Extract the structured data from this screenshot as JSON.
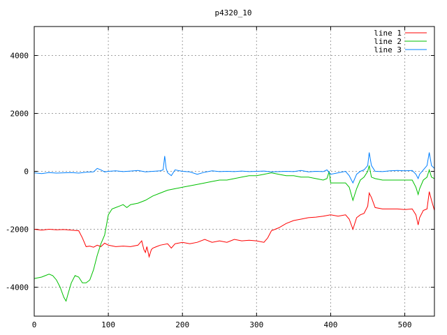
{
  "chart_data": {
    "type": "line",
    "title": "p4320_10",
    "xlabel": "",
    "ylabel": "",
    "xlim": [
      0,
      540
    ],
    "ylim": [
      -5000,
      5000
    ],
    "x_ticks": [
      0,
      100,
      200,
      300,
      400,
      500
    ],
    "y_ticks": [
      -4000,
      -2000,
      0,
      2000,
      4000
    ],
    "grid": true,
    "legend_position": "top-right",
    "series": [
      {
        "name": "line 1",
        "color": "#ff0000",
        "points": [
          [
            0,
            -2000
          ],
          [
            10,
            -2030
          ],
          [
            20,
            -2000
          ],
          [
            30,
            -2020
          ],
          [
            40,
            -2010
          ],
          [
            50,
            -2030
          ],
          [
            60,
            -2050
          ],
          [
            65,
            -2300
          ],
          [
            70,
            -2600
          ],
          [
            75,
            -2580
          ],
          [
            80,
            -2620
          ],
          [
            85,
            -2550
          ],
          [
            90,
            -2600
          ],
          [
            95,
            -2480
          ],
          [
            100,
            -2550
          ],
          [
            110,
            -2600
          ],
          [
            120,
            -2580
          ],
          [
            130,
            -2600
          ],
          [
            140,
            -2550
          ],
          [
            145,
            -2400
          ],
          [
            148,
            -2700
          ],
          [
            150,
            -2800
          ],
          [
            152,
            -2600
          ],
          [
            155,
            -2950
          ],
          [
            158,
            -2700
          ],
          [
            160,
            -2650
          ],
          [
            165,
            -2600
          ],
          [
            170,
            -2550
          ],
          [
            180,
            -2500
          ],
          [
            185,
            -2650
          ],
          [
            190,
            -2500
          ],
          [
            200,
            -2450
          ],
          [
            210,
            -2500
          ],
          [
            220,
            -2450
          ],
          [
            230,
            -2350
          ],
          [
            240,
            -2450
          ],
          [
            250,
            -2400
          ],
          [
            260,
            -2450
          ],
          [
            270,
            -2350
          ],
          [
            280,
            -2400
          ],
          [
            290,
            -2380
          ],
          [
            300,
            -2400
          ],
          [
            310,
            -2450
          ],
          [
            315,
            -2300
          ],
          [
            320,
            -2050
          ],
          [
            330,
            -1950
          ],
          [
            340,
            -1800
          ],
          [
            350,
            -1700
          ],
          [
            360,
            -1650
          ],
          [
            370,
            -1600
          ],
          [
            380,
            -1580
          ],
          [
            390,
            -1550
          ],
          [
            400,
            -1500
          ],
          [
            410,
            -1550
          ],
          [
            420,
            -1500
          ],
          [
            425,
            -1650
          ],
          [
            430,
            -2000
          ],
          [
            435,
            -1600
          ],
          [
            440,
            -1500
          ],
          [
            445,
            -1450
          ],
          [
            450,
            -1200
          ],
          [
            452,
            -750
          ],
          [
            455,
            -900
          ],
          [
            460,
            -1250
          ],
          [
            470,
            -1300
          ],
          [
            480,
            -1300
          ],
          [
            490,
            -1300
          ],
          [
            500,
            -1320
          ],
          [
            510,
            -1300
          ],
          [
            515,
            -1500
          ],
          [
            518,
            -1850
          ],
          [
            520,
            -1600
          ],
          [
            525,
            -1350
          ],
          [
            530,
            -1300
          ],
          [
            533,
            -700
          ],
          [
            536,
            -1000
          ],
          [
            540,
            -1350
          ]
        ]
      },
      {
        "name": "line 2",
        "color": "#00c000",
        "points": [
          [
            0,
            -3700
          ],
          [
            10,
            -3650
          ],
          [
            15,
            -3600
          ],
          [
            20,
            -3550
          ],
          [
            25,
            -3600
          ],
          [
            30,
            -3750
          ],
          [
            35,
            -4000
          ],
          [
            40,
            -4350
          ],
          [
            43,
            -4480
          ],
          [
            46,
            -4200
          ],
          [
            50,
            -3850
          ],
          [
            55,
            -3600
          ],
          [
            60,
            -3650
          ],
          [
            65,
            -3850
          ],
          [
            70,
            -3850
          ],
          [
            75,
            -3750
          ],
          [
            80,
            -3400
          ],
          [
            85,
            -2900
          ],
          [
            90,
            -2500
          ],
          [
            95,
            -2200
          ],
          [
            100,
            -1500
          ],
          [
            105,
            -1300
          ],
          [
            110,
            -1250
          ],
          [
            115,
            -1200
          ],
          [
            120,
            -1150
          ],
          [
            125,
            -1250
          ],
          [
            130,
            -1150
          ],
          [
            140,
            -1100
          ],
          [
            150,
            -1000
          ],
          [
            160,
            -850
          ],
          [
            170,
            -750
          ],
          [
            180,
            -650
          ],
          [
            190,
            -600
          ],
          [
            200,
            -550
          ],
          [
            210,
            -500
          ],
          [
            220,
            -450
          ],
          [
            230,
            -400
          ],
          [
            240,
            -350
          ],
          [
            250,
            -300
          ],
          [
            260,
            -300
          ],
          [
            270,
            -250
          ],
          [
            280,
            -200
          ],
          [
            290,
            -150
          ],
          [
            300,
            -150
          ],
          [
            310,
            -100
          ],
          [
            320,
            -50
          ],
          [
            330,
            -100
          ],
          [
            340,
            -150
          ],
          [
            350,
            -150
          ],
          [
            360,
            -200
          ],
          [
            370,
            -200
          ],
          [
            380,
            -250
          ],
          [
            390,
            -300
          ],
          [
            395,
            -250
          ],
          [
            398,
            0
          ],
          [
            400,
            -400
          ],
          [
            410,
            -400
          ],
          [
            420,
            -400
          ],
          [
            425,
            -550
          ],
          [
            430,
            -1000
          ],
          [
            435,
            -600
          ],
          [
            440,
            -300
          ],
          [
            445,
            -200
          ],
          [
            450,
            0
          ],
          [
            452,
            200
          ],
          [
            455,
            -200
          ],
          [
            460,
            -250
          ],
          [
            470,
            -300
          ],
          [
            480,
            -300
          ],
          [
            490,
            -300
          ],
          [
            500,
            -300
          ],
          [
            510,
            -300
          ],
          [
            515,
            -550
          ],
          [
            518,
            -800
          ],
          [
            520,
            -600
          ],
          [
            525,
            -300
          ],
          [
            530,
            -200
          ],
          [
            533,
            50
          ],
          [
            536,
            -200
          ],
          [
            540,
            -250
          ]
        ]
      },
      {
        "name": "line 3",
        "color": "#0080ff",
        "points": [
          [
            0,
            -50
          ],
          [
            10,
            -80
          ],
          [
            20,
            -40
          ],
          [
            30,
            -60
          ],
          [
            40,
            -50
          ],
          [
            50,
            -40
          ],
          [
            60,
            -60
          ],
          [
            70,
            -30
          ],
          [
            80,
            -20
          ],
          [
            85,
            100
          ],
          [
            90,
            50
          ],
          [
            95,
            -20
          ],
          [
            100,
            0
          ],
          [
            110,
            20
          ],
          [
            120,
            -10
          ],
          [
            130,
            10
          ],
          [
            140,
            30
          ],
          [
            150,
            -20
          ],
          [
            160,
            0
          ],
          [
            170,
            20
          ],
          [
            174,
            50
          ],
          [
            176,
            530
          ],
          [
            178,
            100
          ],
          [
            180,
            -50
          ],
          [
            185,
            -150
          ],
          [
            190,
            50
          ],
          [
            200,
            0
          ],
          [
            210,
            -20
          ],
          [
            220,
            -100
          ],
          [
            230,
            -30
          ],
          [
            240,
            20
          ],
          [
            250,
            -10
          ],
          [
            260,
            0
          ],
          [
            270,
            -10
          ],
          [
            280,
            10
          ],
          [
            290,
            -10
          ],
          [
            300,
            0
          ],
          [
            310,
            10
          ],
          [
            320,
            -20
          ],
          [
            330,
            -10
          ],
          [
            340,
            0
          ],
          [
            350,
            -10
          ],
          [
            360,
            30
          ],
          [
            370,
            -20
          ],
          [
            380,
            0
          ],
          [
            390,
            -10
          ],
          [
            395,
            50
          ],
          [
            400,
            -100
          ],
          [
            410,
            -50
          ],
          [
            420,
            0
          ],
          [
            425,
            -150
          ],
          [
            430,
            -400
          ],
          [
            435,
            -100
          ],
          [
            440,
            0
          ],
          [
            445,
            50
          ],
          [
            450,
            200
          ],
          [
            452,
            650
          ],
          [
            455,
            200
          ],
          [
            460,
            0
          ],
          [
            470,
            -10
          ],
          [
            480,
            20
          ],
          [
            490,
            30
          ],
          [
            500,
            20
          ],
          [
            510,
            30
          ],
          [
            515,
            -100
          ],
          [
            518,
            -250
          ],
          [
            520,
            -100
          ],
          [
            525,
            50
          ],
          [
            530,
            200
          ],
          [
            533,
            650
          ],
          [
            536,
            200
          ],
          [
            540,
            100
          ]
        ]
      }
    ]
  }
}
